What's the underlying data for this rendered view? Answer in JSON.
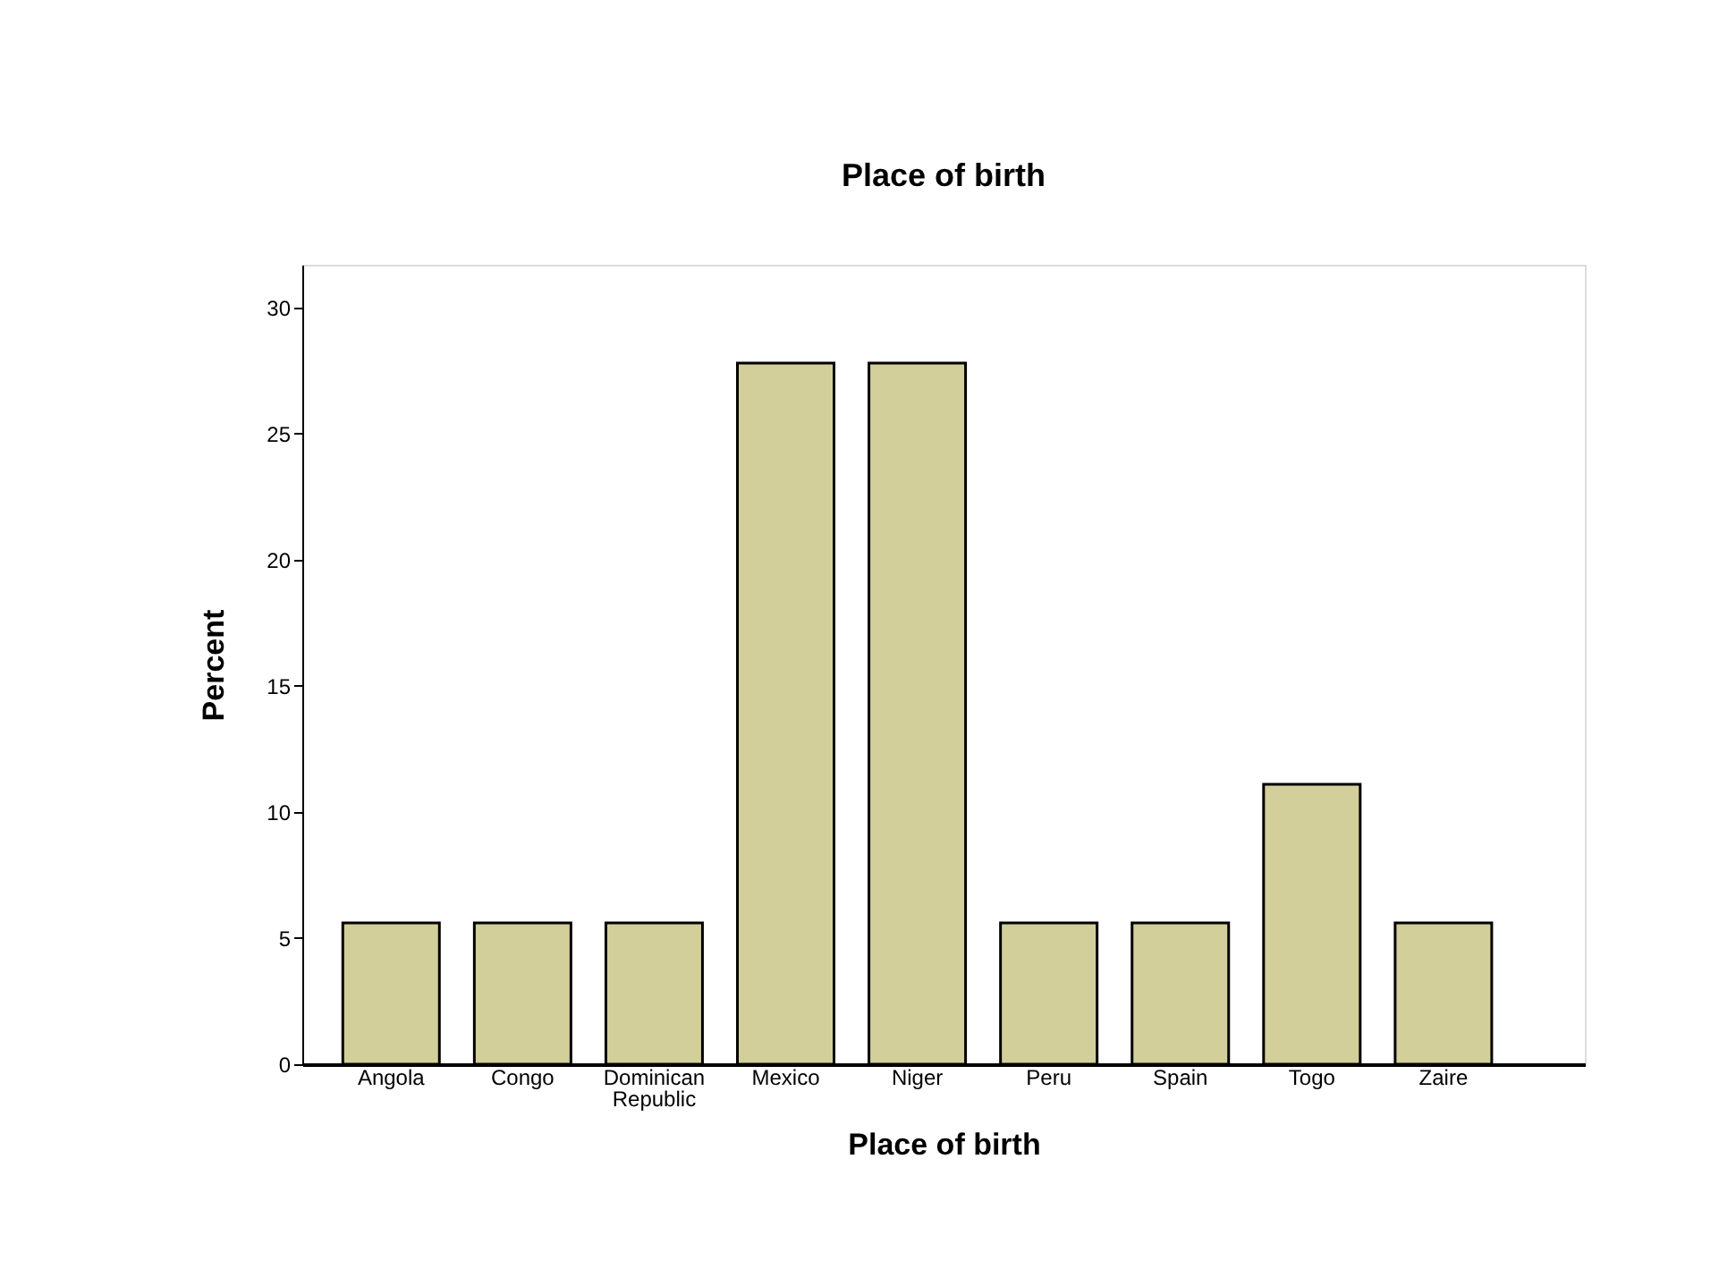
{
  "chart_data": {
    "type": "bar",
    "title": "Place of birth",
    "xlabel": "Place of birth",
    "ylabel": "Percent",
    "categories": [
      "Angola",
      "Congo",
      "Dominican Republic",
      "Mexico",
      "Niger",
      "Peru",
      "Spain",
      "Togo",
      "Zaire"
    ],
    "values": [
      5.6,
      5.6,
      5.6,
      27.8,
      27.8,
      5.6,
      5.6,
      11.1,
      5.6
    ],
    "color": "#d3cf9b",
    "ylim": [
      0,
      31.7
    ],
    "yticks": [
      0,
      5,
      10,
      15,
      20,
      25,
      30
    ],
    "grid": false
  }
}
